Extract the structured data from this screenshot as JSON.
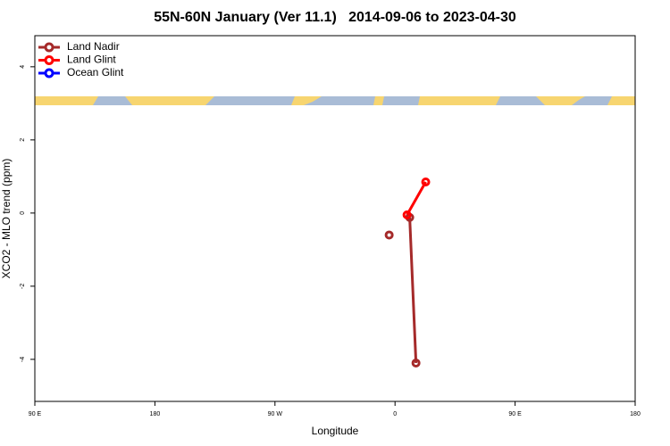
{
  "chart_data": {
    "type": "line",
    "title": "55N-60N January (Ver 11.1)   2014-09-06 to 2023-04-30",
    "xlabel": "Longitude",
    "ylabel": "XCO2 - MLO trend (ppm)",
    "xlim": [
      90,
      540
    ],
    "ylim": [
      -5.15,
      4.85
    ],
    "xticks": [
      {
        "value": 90,
        "label": "90 E"
      },
      180,
      {
        "value": 270,
        "label": "90 W"
      },
      {
        "value": 360,
        "label": "0"
      },
      {
        "value": 450,
        "label": "90 E"
      },
      {
        "value": 540,
        "label": "180"
      }
    ],
    "yticks": [
      4,
      2,
      0,
      -2,
      -4
    ],
    "legend": "top-left",
    "series": [
      {
        "name": "Land Nadir",
        "color": "#a52a2a",
        "x": [
          355.6,
          null,
          371,
          375.7
        ],
        "values": [
          -0.6,
          null,
          -0.12,
          -4.1
        ]
      },
      {
        "name": "Land Glint",
        "color": "#ff0000",
        "x": [
          369,
          383
        ],
        "values": [
          -0.05,
          0.85
        ]
      },
      {
        "name": "Ocean Glint",
        "color": "#0000ff",
        "x": [],
        "values": []
      }
    ]
  }
}
